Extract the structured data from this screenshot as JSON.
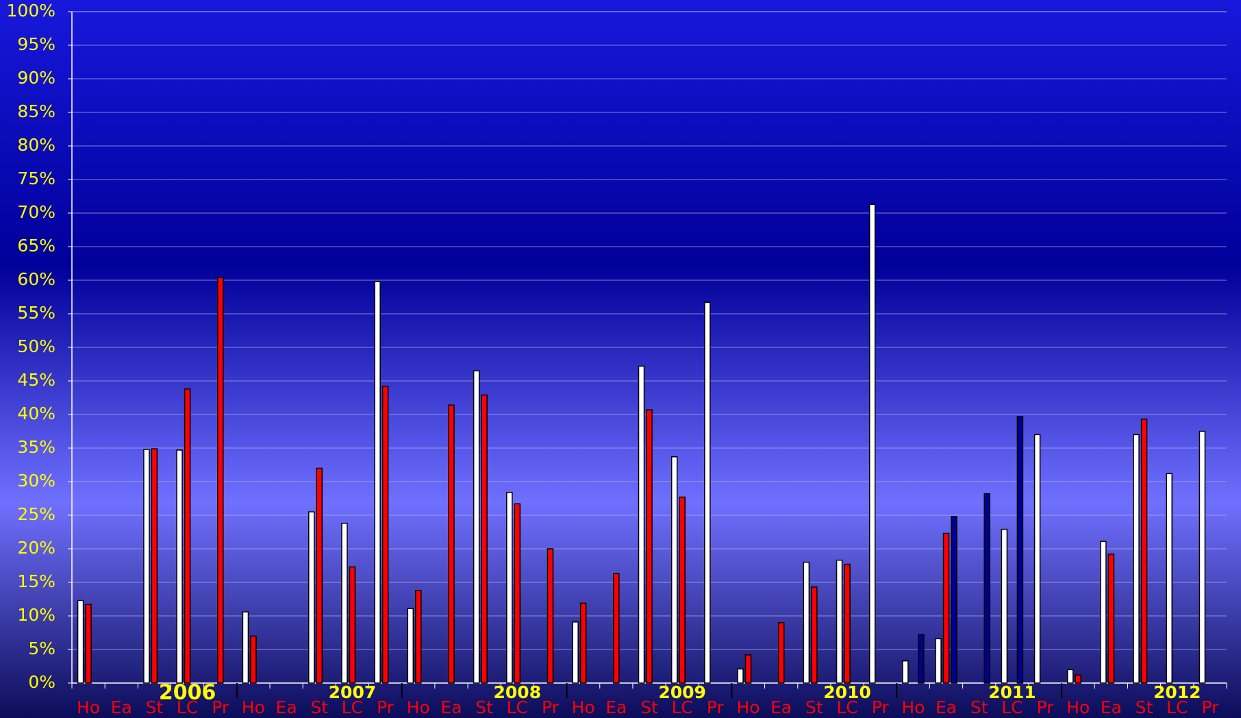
{
  "chart_data": {
    "type": "bar",
    "categories": [
      "Ho",
      "Ea",
      "St",
      "LC",
      "Pr",
      "Ho",
      "Ea",
      "St",
      "LC",
      "Pr",
      "Ho",
      "Ea",
      "St",
      "LC",
      "Pr",
      "Ho",
      "Ea",
      "St",
      "LC",
      "Pr",
      "Ho",
      "Ea",
      "St",
      "LC",
      "Pr",
      "Ho",
      "Ea",
      "St",
      "LC",
      "Pr",
      "Ho",
      "Ea",
      "St",
      "LC",
      "Pr"
    ],
    "groups": [
      "2006",
      "2007",
      "2008",
      "2009",
      "2010",
      "2011",
      "2012"
    ],
    "series": [
      {
        "color": "#ffffff",
        "values": [
          12.3,
          null,
          34.8,
          34.7,
          null,
          10.6,
          null,
          25.5,
          23.8,
          59.8,
          11.1,
          null,
          46.5,
          28.4,
          null,
          9.1,
          null,
          47.2,
          33.7,
          56.7,
          2.1,
          null,
          18.0,
          18.3,
          71.3,
          3.3,
          6.6,
          null,
          22.9,
          37.0,
          2.0,
          21.1,
          37.0,
          31.2,
          37.5
        ]
      },
      {
        "color": "#ff0000",
        "values": [
          11.7,
          null,
          34.9,
          43.8,
          60.4,
          7.0,
          null,
          32.0,
          17.3,
          44.2,
          13.8,
          41.4,
          42.9,
          26.7,
          20.0,
          11.9,
          16.3,
          40.7,
          27.7,
          null,
          4.2,
          9.0,
          14.3,
          17.7,
          null,
          null,
          22.3,
          null,
          null,
          null,
          1.2,
          19.2,
          39.3,
          null,
          null
        ]
      },
      {
        "color": "#00008c",
        "values": [
          null,
          null,
          null,
          null,
          null,
          null,
          null,
          null,
          null,
          null,
          null,
          null,
          null,
          null,
          null,
          null,
          null,
          null,
          null,
          null,
          null,
          null,
          null,
          null,
          null,
          7.2,
          24.8,
          28.2,
          39.7,
          null,
          null,
          null,
          null,
          null,
          null
        ]
      }
    ],
    "ylim": [
      0,
      100
    ],
    "yticks": [
      {
        "value": 0,
        "label": "0%"
      },
      {
        "value": 5,
        "label": "5%"
      },
      {
        "value": 10,
        "label": "10%"
      },
      {
        "value": 15,
        "label": "15%"
      },
      {
        "value": 20,
        "label": "20%"
      },
      {
        "value": 25,
        "label": "25%"
      },
      {
        "value": 30,
        "label": "30%"
      },
      {
        "value": 35,
        "label": "35%"
      },
      {
        "value": 40,
        "label": "40%"
      },
      {
        "value": 45,
        "label": "45%"
      },
      {
        "value": 50,
        "label": "50%"
      },
      {
        "value": 55,
        "label": "55%"
      },
      {
        "value": 60,
        "label": "60%"
      },
      {
        "value": 65,
        "label": "65%"
      },
      {
        "value": 70,
        "label": "70%"
      },
      {
        "value": 75,
        "label": "75%"
      },
      {
        "value": 80,
        "label": "80%"
      },
      {
        "value": 85,
        "label": "85%"
      },
      {
        "value": 90,
        "label": "90%"
      },
      {
        "value": 95,
        "label": "95%"
      },
      {
        "value": 100,
        "label": "100%"
      }
    ],
    "grid": true
  }
}
